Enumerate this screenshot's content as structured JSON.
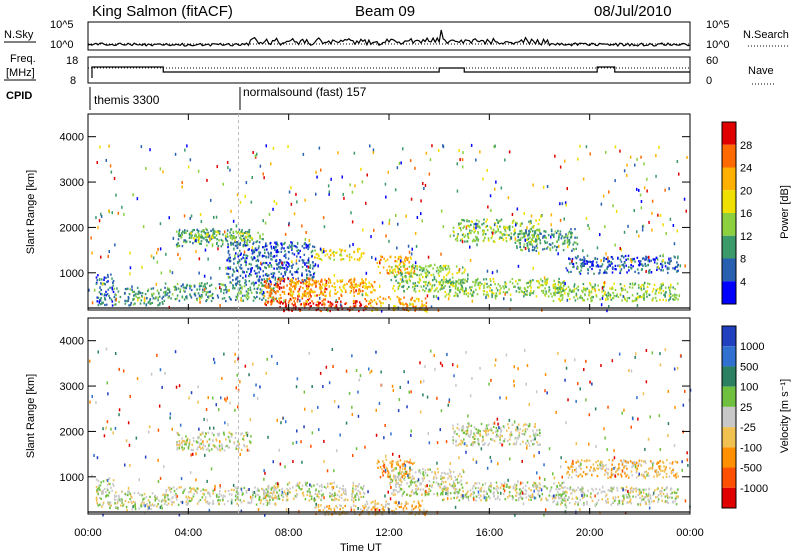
{
  "header": {
    "station": "King Salmon (fitACF)",
    "beam": "Beam 09",
    "date": "08/Jul/2010"
  },
  "labels": {
    "nsky": "N.Sky",
    "nsearch": "N.Search",
    "freq_line1": "Freq.",
    "freq_line2": "[MHz]",
    "nave": "Nave",
    "cpid": "CPID",
    "cpid_1": "themis 3300",
    "cpid_2": "normalsound (fast) 157",
    "ylabel_power": "Slant Range [km]",
    "ylabel_velocity": "Slant Range [km]",
    "xlabel": "Time UT"
  },
  "noise_axis": {
    "left_ticks": [
      "10^5",
      "10^0"
    ],
    "right_ticks": [
      "10^5",
      "10^0"
    ]
  },
  "freq_axis": {
    "left_ticks": [
      "18",
      "8"
    ],
    "right_ticks": [
      "60",
      "0"
    ]
  },
  "chart_data": [
    {
      "type": "heatmap",
      "name": "power",
      "ylabel": "Slant Range [km]",
      "xlabel": "Time UT",
      "xlim": [
        "00:00",
        "24:00"
      ],
      "ylim": [
        180,
        4500
      ],
      "x_ticks": [
        "00:00",
        "04:00",
        "08:00",
        "12:00",
        "16:00",
        "20:00",
        "00:00"
      ],
      "x_tick_hours": [
        0,
        4,
        8,
        12,
        16,
        20,
        24
      ],
      "y_ticks": [
        1000,
        2000,
        3000,
        4000
      ],
      "colorbar": {
        "label": "Power [dB]",
        "ticks": [
          "28",
          "24",
          "20",
          "16",
          "12",
          "8",
          "4"
        ],
        "colors": [
          "#e00000",
          "#ff6a00",
          "#ffb000",
          "#f0e000",
          "#8cd040",
          "#3a9a6a",
          "#2860b0",
          "#0000ff"
        ]
      },
      "regions": [
        {
          "t0": 0.3,
          "t1": 1.0,
          "r0": 300,
          "r1": 1000,
          "level": 1
        },
        {
          "t0": 1.0,
          "t1": 3.0,
          "r0": 300,
          "r1": 700,
          "level": 2
        },
        {
          "t0": 3.0,
          "t1": 7.5,
          "r0": 400,
          "r1": 800,
          "level": 2
        },
        {
          "t0": 3.5,
          "t1": 6.5,
          "r0": 1600,
          "r1": 2000,
          "level": 2
        },
        {
          "t0": 4.0,
          "t1": 7.0,
          "r0": 1700,
          "r1": 1950,
          "level": 3
        },
        {
          "t0": 5.5,
          "t1": 9.0,
          "r0": 800,
          "r1": 1700,
          "level": 1
        },
        {
          "t0": 7.0,
          "t1": 9.5,
          "r0": 300,
          "r1": 900,
          "level": 6
        },
        {
          "t0": 7.5,
          "t1": 11.0,
          "r0": 180,
          "r1": 400,
          "level": 7
        },
        {
          "t0": 8.0,
          "t1": 11.5,
          "r0": 500,
          "r1": 900,
          "level": 5
        },
        {
          "t0": 9.0,
          "t1": 11.0,
          "r0": 1300,
          "r1": 1550,
          "level": 4
        },
        {
          "t0": 11.0,
          "t1": 13.5,
          "r0": 180,
          "r1": 500,
          "level": 5
        },
        {
          "t0": 11.5,
          "t1": 13.0,
          "r0": 1000,
          "r1": 1400,
          "level": 5
        },
        {
          "t0": 12.0,
          "t1": 15.0,
          "r0": 600,
          "r1": 1200,
          "level": 3
        },
        {
          "t0": 14.5,
          "t1": 18.0,
          "r0": 1700,
          "r1": 2200,
          "level": 3
        },
        {
          "t0": 14.0,
          "t1": 19.0,
          "r0": 500,
          "r1": 900,
          "level": 3
        },
        {
          "t0": 17.0,
          "t1": 19.5,
          "r0": 1500,
          "r1": 2000,
          "level": 2
        },
        {
          "t0": 18.5,
          "t1": 23.5,
          "r0": 400,
          "r1": 800,
          "level": 3
        },
        {
          "t0": 19.0,
          "t1": 23.5,
          "r0": 1000,
          "r1": 1400,
          "level": 1
        }
      ]
    },
    {
      "type": "heatmap",
      "name": "velocity",
      "ylabel": "Slant Range [km]",
      "xlabel": "Time UT",
      "xlim": [
        "00:00",
        "24:00"
      ],
      "ylim": [
        180,
        4500
      ],
      "x_ticks": [
        "00:00",
        "04:00",
        "08:00",
        "12:00",
        "16:00",
        "20:00",
        "00:00"
      ],
      "x_tick_hours": [
        0,
        4,
        8,
        12,
        16,
        20,
        24
      ],
      "y_ticks": [
        1000,
        2000,
        3000,
        4000
      ],
      "colorbar": {
        "label": "Velocity [m s^-1]",
        "ticks": [
          "1000",
          "500",
          "100",
          "25",
          "-25",
          "-100",
          "-500",
          "-1000"
        ],
        "colors": [
          "#2040c0",
          "#3070d0",
          "#2a8060",
          "#70c040",
          "#c8c8c8",
          "#f0c050",
          "#ff9000",
          "#ff5000",
          "#e00000"
        ]
      },
      "regions": [
        {
          "t0": 0.3,
          "t1": 1.0,
          "r0": 300,
          "r1": 1000,
          "level": 4
        },
        {
          "t0": 1.0,
          "t1": 3.0,
          "r0": 300,
          "r1": 700,
          "level": 4
        },
        {
          "t0": 3.0,
          "t1": 7.5,
          "r0": 400,
          "r1": 800,
          "level": 4
        },
        {
          "t0": 3.5,
          "t1": 6.5,
          "r0": 1600,
          "r1": 2000,
          "level": 4
        },
        {
          "t0": 7.0,
          "t1": 11.0,
          "r0": 500,
          "r1": 900,
          "level": 4
        },
        {
          "t0": 9.0,
          "t1": 11.5,
          "r0": 180,
          "r1": 400,
          "level": 5
        },
        {
          "t0": 11.0,
          "t1": 13.5,
          "r0": 180,
          "r1": 500,
          "level": 5
        },
        {
          "t0": 11.5,
          "t1": 13.0,
          "r0": 1000,
          "r1": 1400,
          "level": 6
        },
        {
          "t0": 12.0,
          "t1": 15.0,
          "r0": 600,
          "r1": 1200,
          "level": 4
        },
        {
          "t0": 14.5,
          "t1": 18.0,
          "r0": 1700,
          "r1": 2200,
          "level": 4
        },
        {
          "t0": 14.0,
          "t1": 19.0,
          "r0": 500,
          "r1": 900,
          "level": 4
        },
        {
          "t0": 18.5,
          "t1": 23.5,
          "r0": 400,
          "r1": 800,
          "level": 4
        },
        {
          "t0": 19.0,
          "t1": 23.5,
          "r0": 1000,
          "r1": 1400,
          "level": 5
        }
      ]
    }
  ]
}
